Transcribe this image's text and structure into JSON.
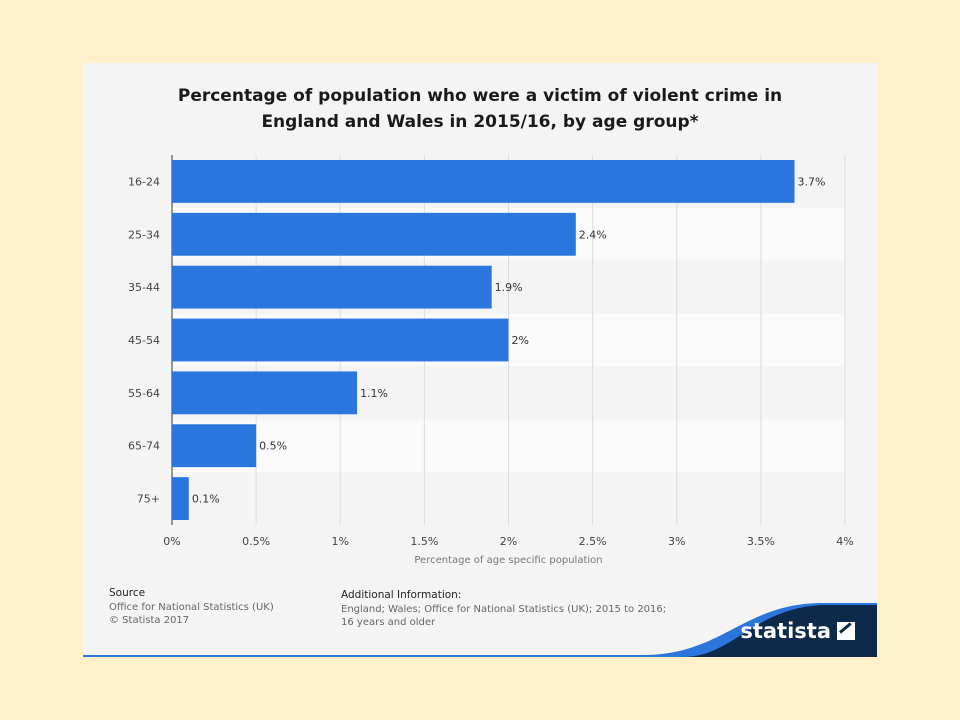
{
  "title_line1": "Percentage of population who were a victim of violent crime in",
  "title_line2": "England and Wales in 2015/16, by age group*",
  "source": {
    "heading": "Source",
    "line1": "Office for National Statistics (UK)",
    "line2": "© Statista 2017"
  },
  "additional": {
    "heading": "Additional Information:",
    "line1": "England; Wales; Office for National Statistics (UK); 2015 to 2016;",
    "line2": "16 years and older"
  },
  "brand": "statista",
  "colors": {
    "bar": "#2b76dd",
    "footer": "#0d2a4a",
    "accent": "#2b76dd"
  },
  "chart_data": {
    "type": "bar",
    "orientation": "horizontal",
    "categories": [
      "16-24",
      "25-34",
      "35-44",
      "45-54",
      "55-64",
      "65-74",
      "75+"
    ],
    "values": [
      3.7,
      2.4,
      1.9,
      2,
      1.1,
      0.5,
      0.1
    ],
    "value_labels": [
      "3.7%",
      "2.4%",
      "1.9%",
      "2%",
      "1.1%",
      "0.5%",
      "0.1%"
    ],
    "xlabel": "Percentage of age specific population",
    "ylabel": "",
    "xlim": [
      0,
      4
    ],
    "x_ticks": [
      0,
      0.5,
      1,
      1.5,
      2,
      2.5,
      3,
      3.5,
      4
    ],
    "x_tick_labels": [
      "0%",
      "0.5%",
      "1%",
      "1.5%",
      "2%",
      "2.5%",
      "3%",
      "3.5%",
      "4%"
    ],
    "grid": true
  }
}
